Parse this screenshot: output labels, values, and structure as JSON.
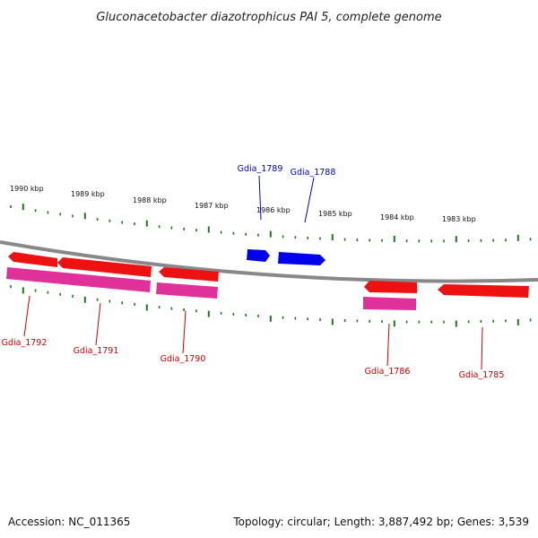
{
  "title": "Gluconacetobacter diazotrophicus PAI 5, complete genome",
  "accession": "Accession: NC_011365",
  "summary": "Topology: circular; Length: 3,887,492 bp; Genes: 3,539",
  "colors": {
    "backbone": "#888888",
    "ticks": "#1a7a1a",
    "forward_cds": "#0000ee",
    "reverse_cds": "#ee1111",
    "reverse_gene": "#e0309a",
    "label_forward": "#0000cc",
    "label_reverse": "#cc0000"
  },
  "scale_labels": [
    "1990 kbp",
    "1989 kbp",
    "1988 kbp",
    "1987 kbp",
    "1986 kbp",
    "1985 kbp",
    "1984 kbp",
    "1983 kbp"
  ],
  "genes": [
    {
      "name": "Gdia_1789",
      "strand": "+"
    },
    {
      "name": "Gdia_1788",
      "strand": "+"
    },
    {
      "name": "Gdia_1792",
      "strand": "-"
    },
    {
      "name": "Gdia_1791",
      "strand": "-"
    },
    {
      "name": "Gdia_1790",
      "strand": "-"
    },
    {
      "name": "Gdia_1786",
      "strand": "-"
    },
    {
      "name": "Gdia_1785",
      "strand": "-"
    }
  ]
}
